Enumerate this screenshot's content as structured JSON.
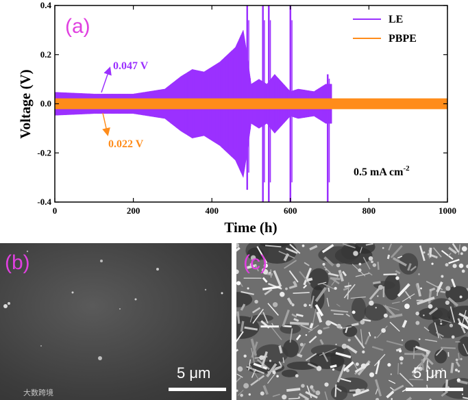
{
  "chart_data": {
    "type": "line",
    "panel_label": "(a)",
    "xlabel": "Time (h)",
    "ylabel": "Voltage (V)",
    "xlim": [
      0,
      1000
    ],
    "ylim": [
      -0.4,
      0.4
    ],
    "xticks": [
      "0",
      "200",
      "400",
      "600",
      "800",
      "1000"
    ],
    "yticks": [
      "-0.4",
      "-0.2",
      "0.0",
      "0.2",
      "0.4"
    ],
    "legend_position": "top-right",
    "series": [
      {
        "name": "LE",
        "color": "#9b30ff",
        "envelope_x": [
          0,
          100,
          200,
          280,
          320,
          350,
          380,
          420,
          460,
          480,
          490,
          500,
          520,
          540,
          560,
          600,
          620,
          660,
          690,
          700
        ],
        "envelope_y": [
          0.047,
          0.04,
          0.04,
          0.06,
          0.11,
          0.14,
          0.13,
          0.17,
          0.23,
          0.3,
          0.2,
          0.08,
          0.1,
          0.08,
          0.12,
          0.05,
          0.06,
          0.05,
          0.08,
          0.08
        ],
        "spikes": [
          {
            "x": 490,
            "y": 0.4,
            "y_min": -0.35
          },
          {
            "x": 530,
            "y": 0.4,
            "y_min": -0.4
          },
          {
            "x": 545,
            "y": 0.4,
            "y_min": -0.4
          },
          {
            "x": 600,
            "y": 0.4,
            "y_min": -0.4
          },
          {
            "x": 695,
            "y": 0.12,
            "y_min": -0.4
          }
        ],
        "end_x": 705
      },
      {
        "name": "PBPE",
        "color": "#ff8c1a",
        "amplitude": 0.022,
        "end_x": 1000
      }
    ],
    "annotations": [
      {
        "text": "0.047 V",
        "color": "#9b30ff"
      },
      {
        "text": "0.022 V",
        "color": "#ff8c1a"
      },
      {
        "text": "0.5 mA cm",
        "superscript": "-2",
        "color": "#000000"
      }
    ]
  },
  "sem_panels": [
    {
      "label": "(b)",
      "scale_text": "5 μm"
    },
    {
      "label": "(c)",
      "scale_text": "5 μm"
    }
  ],
  "watermark": "大数跨境",
  "colors": {
    "panel_label": "#e040e0",
    "axis": "#000000"
  }
}
